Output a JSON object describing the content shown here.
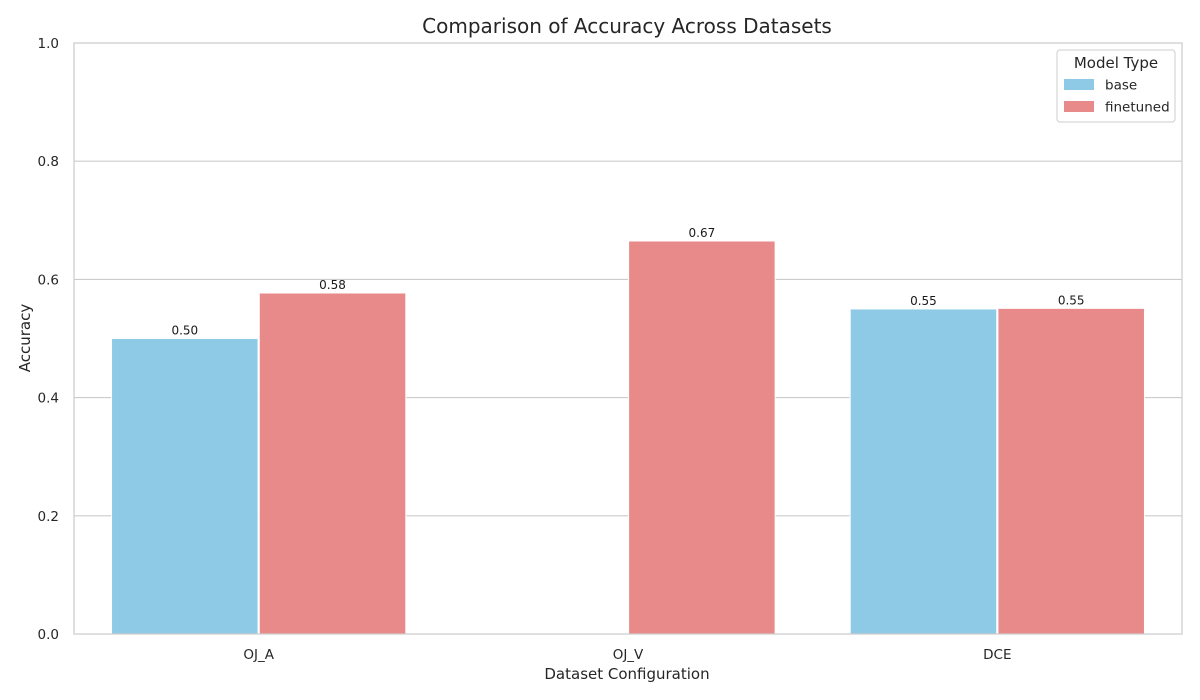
{
  "chart_data": {
    "type": "bar",
    "title": "Comparison of Accuracy Across Datasets",
    "xlabel": "Dataset Configuration",
    "ylabel": "Accuracy",
    "ylim": [
      0,
      1.0
    ],
    "yticks": [
      0.0,
      0.2,
      0.4,
      0.6,
      0.8,
      1.0
    ],
    "ytick_labels": [
      "0.0",
      "0.2",
      "0.4",
      "0.6",
      "0.8",
      "1.0"
    ],
    "grid": true,
    "categories": [
      "OJ_A",
      "OJ_V",
      "DCE"
    ],
    "legend": {
      "title": "Model Type",
      "placement": "top-right"
    },
    "series": [
      {
        "name": "base",
        "color": "#8ecae6",
        "values": [
          0.5,
          null,
          0.55
        ],
        "labels": [
          "0.50",
          null,
          "0.55"
        ]
      },
      {
        "name": "finetuned",
        "color": "#e88a8a",
        "values": [
          0.577,
          0.665,
          0.551
        ],
        "labels": [
          "0.58",
          "0.67",
          "0.55"
        ]
      }
    ]
  }
}
